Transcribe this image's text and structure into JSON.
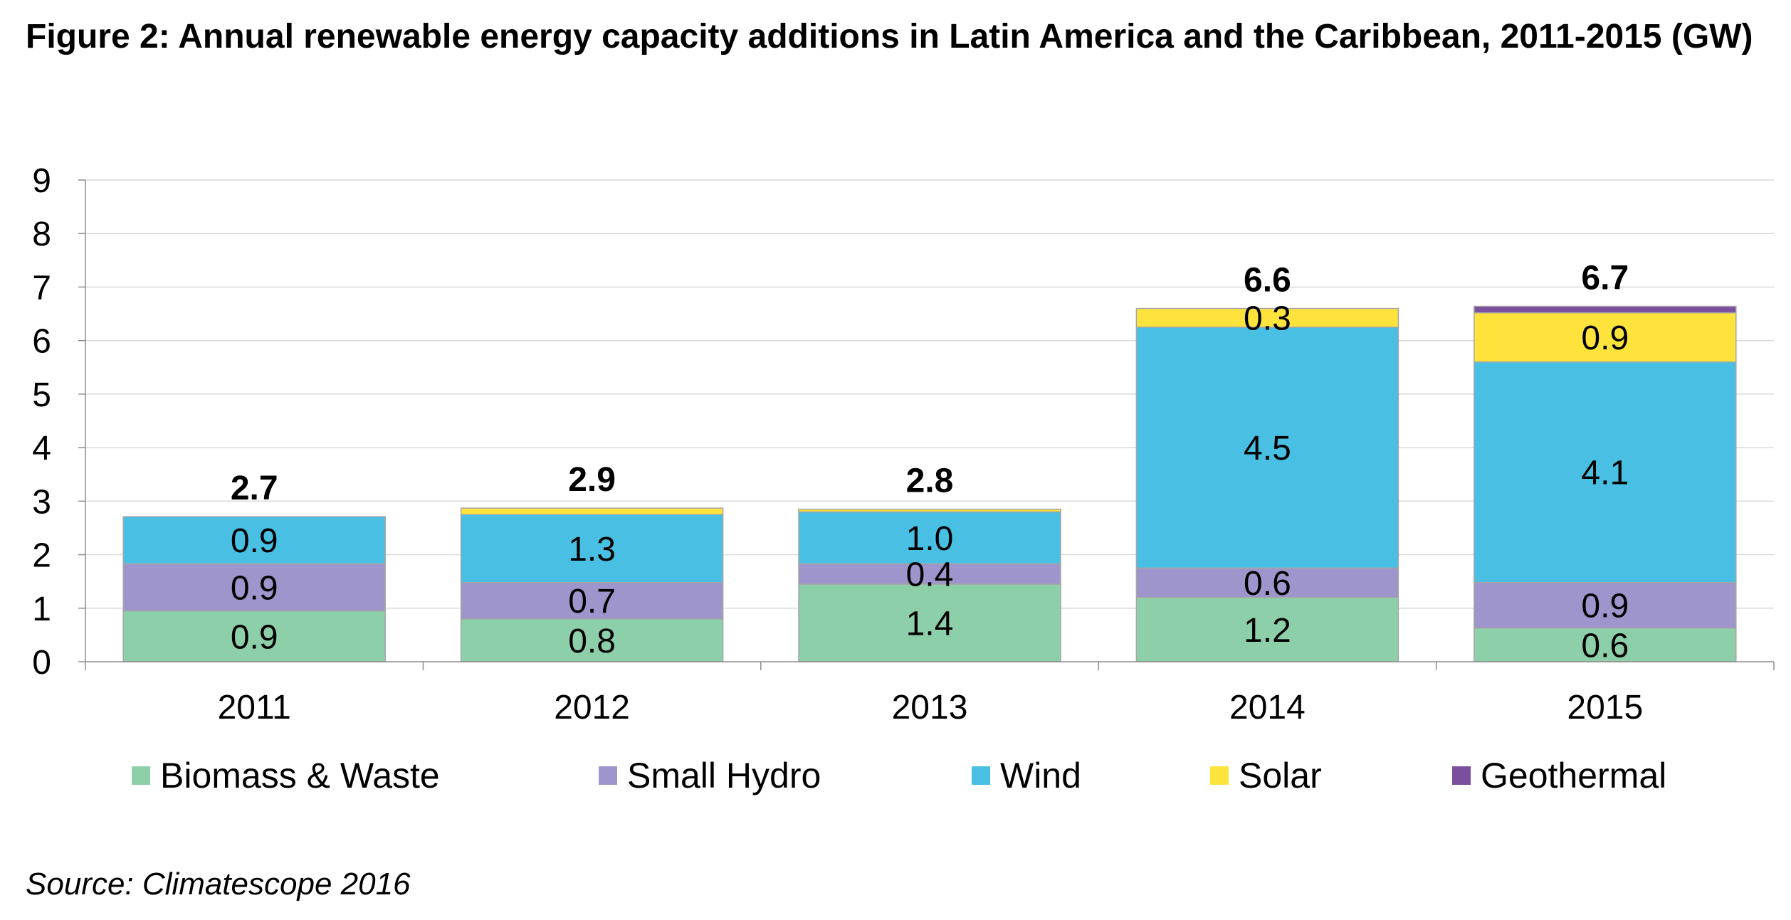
{
  "title": "Figure 2: Annual renewable energy capacity additions in Latin America and the Caribbean, 2011-2015 (GW)",
  "source": "Source: Climatescope 2016",
  "colors": {
    "biomass": "#8dcfa9",
    "small_hydro": "#9d95cc",
    "wind": "#49bfe4",
    "solar": "#fde33c",
    "geothermal": "#7a4f9e",
    "grid": "#d9d9d9",
    "axis": "#8c8c8c"
  },
  "chart_data": {
    "type": "bar",
    "stacked": true,
    "title": "Figure 2: Annual renewable energy capacity additions in Latin America and the Caribbean, 2011-2015 (GW)",
    "xlabel": "",
    "ylabel": "",
    "ylim": [
      0,
      9
    ],
    "yticks": [
      "0",
      "1",
      "2",
      "3",
      "4",
      "5",
      "6",
      "7",
      "8",
      "9"
    ],
    "grid": true,
    "legend_position": "bottom",
    "categories": [
      "2011",
      "2012",
      "2013",
      "2014",
      "2015"
    ],
    "series": [
      {
        "name": "Biomass & Waste",
        "color": "#8dcfa9",
        "values": [
          0.95,
          0.8,
          1.45,
          1.2,
          0.63
        ],
        "labels": [
          "0.9",
          "0.8",
          "1.4",
          "1.2",
          "0.6"
        ]
      },
      {
        "name": "Small Hydro",
        "color": "#9d95cc",
        "values": [
          0.88,
          0.68,
          0.38,
          0.55,
          0.85
        ],
        "labels": [
          "0.9",
          "0.7",
          "0.4",
          "0.6",
          "0.9"
        ]
      },
      {
        "name": "Wind",
        "color": "#49bfe4",
        "values": [
          0.88,
          1.27,
          0.97,
          4.5,
          4.12
        ],
        "labels": [
          "0.9",
          "1.3",
          "1.0",
          "4.5",
          "4.1"
        ]
      },
      {
        "name": "Solar",
        "color": "#fde33c",
        "values": [
          0.0,
          0.12,
          0.05,
          0.35,
          0.92
        ],
        "labels": [
          "",
          "",
          "",
          "0.3",
          "0.9"
        ]
      },
      {
        "name": "Geothermal",
        "color": "#7a4f9e",
        "values": [
          0.0,
          0.0,
          0.0,
          0.0,
          0.12
        ],
        "labels": [
          "",
          "",
          "",
          "",
          ""
        ]
      }
    ],
    "totals": [
      "2.7",
      "2.9",
      "2.8",
      "6.6",
      "6.7"
    ]
  }
}
